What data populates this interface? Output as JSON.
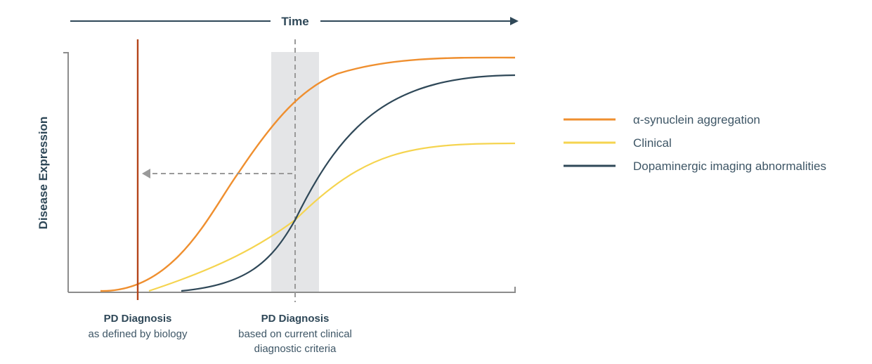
{
  "header": {
    "time_label": "Time"
  },
  "y_axis": {
    "label": "Disease Expression"
  },
  "annotations": {
    "biology": {
      "title": "PD Diagnosis",
      "subtitle": "as defined by biology"
    },
    "clinical": {
      "title": "PD Diagnosis",
      "line1": "based on current clinical",
      "line2": "diagnostic criteria"
    }
  },
  "legend": {
    "items": [
      {
        "label": "α-synuclein aggregation",
        "color": "#ef8f2f"
      },
      {
        "label": "Clinical",
        "color": "#f5d44f"
      },
      {
        "label": "Dopaminergic imaging abnormalities",
        "color": "#2f4858"
      }
    ]
  },
  "colors": {
    "axis": "#8c8c8c",
    "time_arrow": "#2f4858",
    "biology_marker": "#b5451b",
    "clinical_band": "#e4e5e7",
    "dashed": "#9a9a9a"
  }
}
